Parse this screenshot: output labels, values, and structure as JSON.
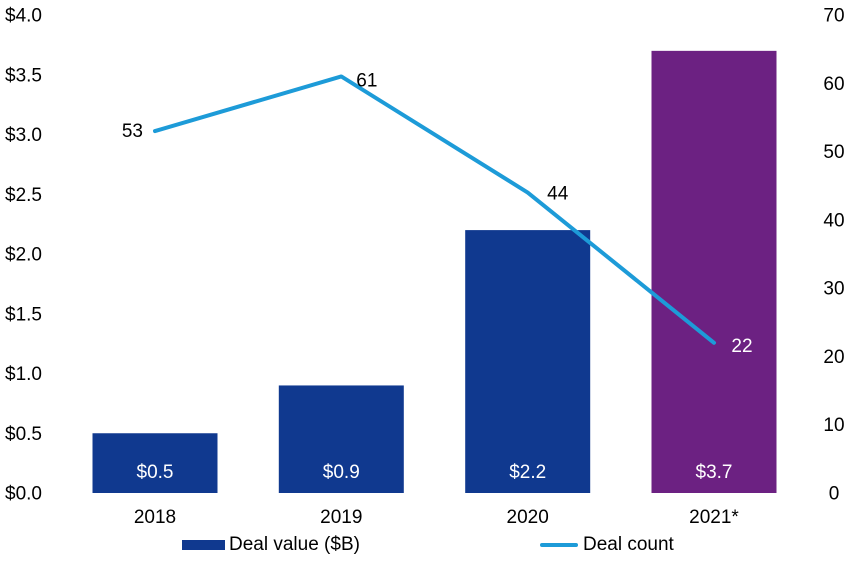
{
  "colors": {
    "background": "#ffffff",
    "bar_blue": "#10398f",
    "bar_purple": "#6c2182",
    "line_blue": "#1d9bd8",
    "text_black": "#000000",
    "text_white": "#ffffff"
  },
  "chart_data": {
    "type": "bar+line combo",
    "title": "",
    "categories": [
      "2018",
      "2019",
      "2020",
      "2021*"
    ],
    "series": [
      {
        "name": "Deal value ($B)",
        "type": "bar",
        "axis": "left",
        "values": [
          0.5,
          0.9,
          2.2,
          3.7
        ],
        "value_labels": [
          "$0.5",
          "$0.9",
          "$2.2",
          "$3.7"
        ],
        "bar_colors": [
          "#10398f",
          "#10398f",
          "#10398f",
          "#6c2182"
        ],
        "value_label_color": "#ffffff"
      },
      {
        "name": "Deal count",
        "type": "line",
        "axis": "right",
        "values": [
          53,
          61,
          44,
          22
        ],
        "value_labels": [
          "53",
          "61",
          "44",
          "22"
        ],
        "label_colors": [
          "#000000",
          "#000000",
          "#000000",
          "#ffffff"
        ],
        "line_color": "#1d9bd8"
      }
    ],
    "left_axis": {
      "min": 0,
      "max": 4.0,
      "tick_labels": [
        "$0.0",
        "$0.5",
        "$1.0",
        "$1.5",
        "$2.0",
        "$2.5",
        "$3.0",
        "$3.5",
        "$4.0"
      ]
    },
    "right_axis": {
      "min": 0,
      "max": 70,
      "tick_labels": [
        "0",
        "10",
        "20",
        "30",
        "40",
        "50",
        "60",
        "70"
      ]
    },
    "grid": false,
    "axis_lines": false,
    "legend_position": "bottom",
    "legend": [
      {
        "label": "Deal value ($B)",
        "swatch": "bar"
      },
      {
        "label": "Deal count",
        "swatch": "line"
      }
    ]
  }
}
